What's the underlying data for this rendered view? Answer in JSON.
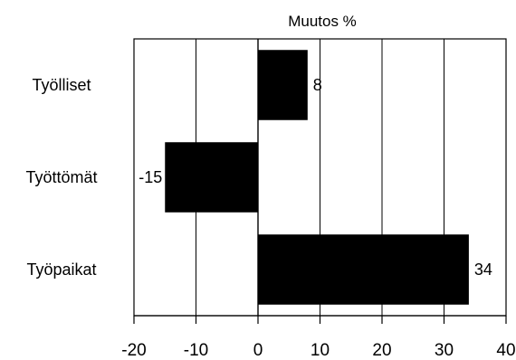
{
  "chart_data": {
    "type": "bar",
    "orientation": "horizontal",
    "title": "Muutos %",
    "categories": [
      "Työlliset",
      "Työttömät",
      "Työpaikat"
    ],
    "values": [
      8,
      -15,
      34
    ],
    "data_labels": [
      "8",
      "-15",
      "34"
    ],
    "xlim": [
      -20,
      40
    ],
    "x_ticks": [
      -20,
      -10,
      0,
      10,
      20,
      30,
      40
    ],
    "x_tick_labels": [
      "-20",
      "-10",
      "0",
      "10",
      "20",
      "30",
      "40"
    ],
    "xlabel": "",
    "ylabel": "",
    "grid": "vertical",
    "legend": "none",
    "bar_color": "#000000"
  }
}
